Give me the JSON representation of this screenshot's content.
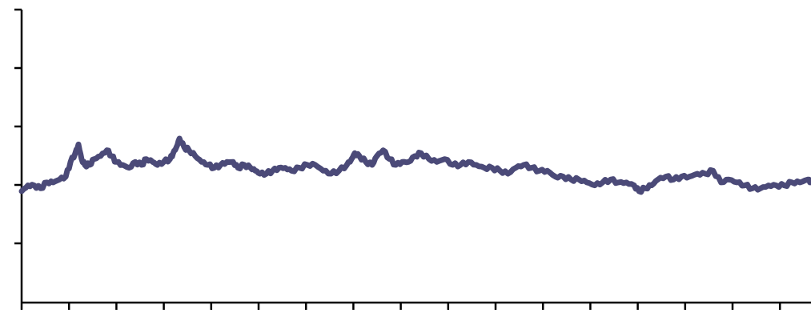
{
  "chart_data": {
    "type": "line",
    "title": "",
    "xlabel": "",
    "ylabel": "",
    "x_tick_count": 17,
    "y_tick_count": 5,
    "xlim": [
      0,
      1000
    ],
    "ylim": [
      0,
      100
    ],
    "grid": false,
    "series": [
      {
        "color": "#4b4a78",
        "x": [
          0,
          8,
          16,
          24,
          32,
          40,
          48,
          56,
          62,
          68,
          72,
          76,
          80,
          86,
          92,
          100,
          108,
          114,
          120,
          128,
          136,
          144,
          152,
          158,
          166,
          172,
          180,
          188,
          192,
          196,
          200,
          206,
          212,
          220,
          228,
          236,
          244,
          252,
          260,
          268,
          274,
          282,
          290,
          296,
          302,
          310,
          318,
          326,
          334,
          342,
          352,
          362,
          372,
          382,
          392,
          402,
          412,
          418,
          422,
          428,
          436,
          444,
          450,
          458,
          466,
          474,
          482,
          490,
          498,
          506,
          516,
          526,
          536,
          546,
          556,
          566,
          576,
          586,
          596,
          606,
          616,
          626,
          636,
          646,
          656,
          666,
          676,
          686,
          696,
          706,
          716,
          726,
          736,
          746,
          756,
          766,
          776,
          782,
          790,
          798,
          806,
          816,
          826,
          836,
          846,
          856,
          866,
          876,
          886,
          896,
          906,
          916,
          926,
          936,
          946,
          956,
          966,
          976,
          986,
          996,
          1000
        ],
        "y": [
          38,
          40,
          40,
          39,
          41,
          41,
          42,
          43,
          48,
          51,
          54,
          49,
          47,
          47,
          49,
          50,
          52,
          50,
          48,
          47,
          46,
          48,
          47,
          49,
          48,
          47,
          48,
          49,
          51,
          53,
          56,
          53,
          52,
          50,
          48,
          47,
          46,
          47,
          48,
          48,
          46,
          47,
          46,
          45,
          44,
          44,
          45,
          46,
          46,
          45,
          46,
          47,
          47,
          45,
          44,
          45,
          47,
          49,
          51,
          50,
          48,
          47,
          50,
          52,
          49,
          47,
          48,
          48,
          50,
          51,
          49,
          48,
          49,
          47,
          47,
          48,
          47,
          46,
          46,
          45,
          44,
          46,
          47,
          46,
          45,
          45,
          43,
          43,
          42,
          42,
          41,
          40,
          41,
          42,
          41,
          41,
          40,
          38,
          39,
          40,
          42,
          43,
          42,
          43,
          43,
          44,
          44,
          45,
          41,
          42,
          41,
          40,
          39,
          39,
          40,
          40,
          40,
          41,
          41,
          42,
          41
        ]
      }
    ]
  }
}
